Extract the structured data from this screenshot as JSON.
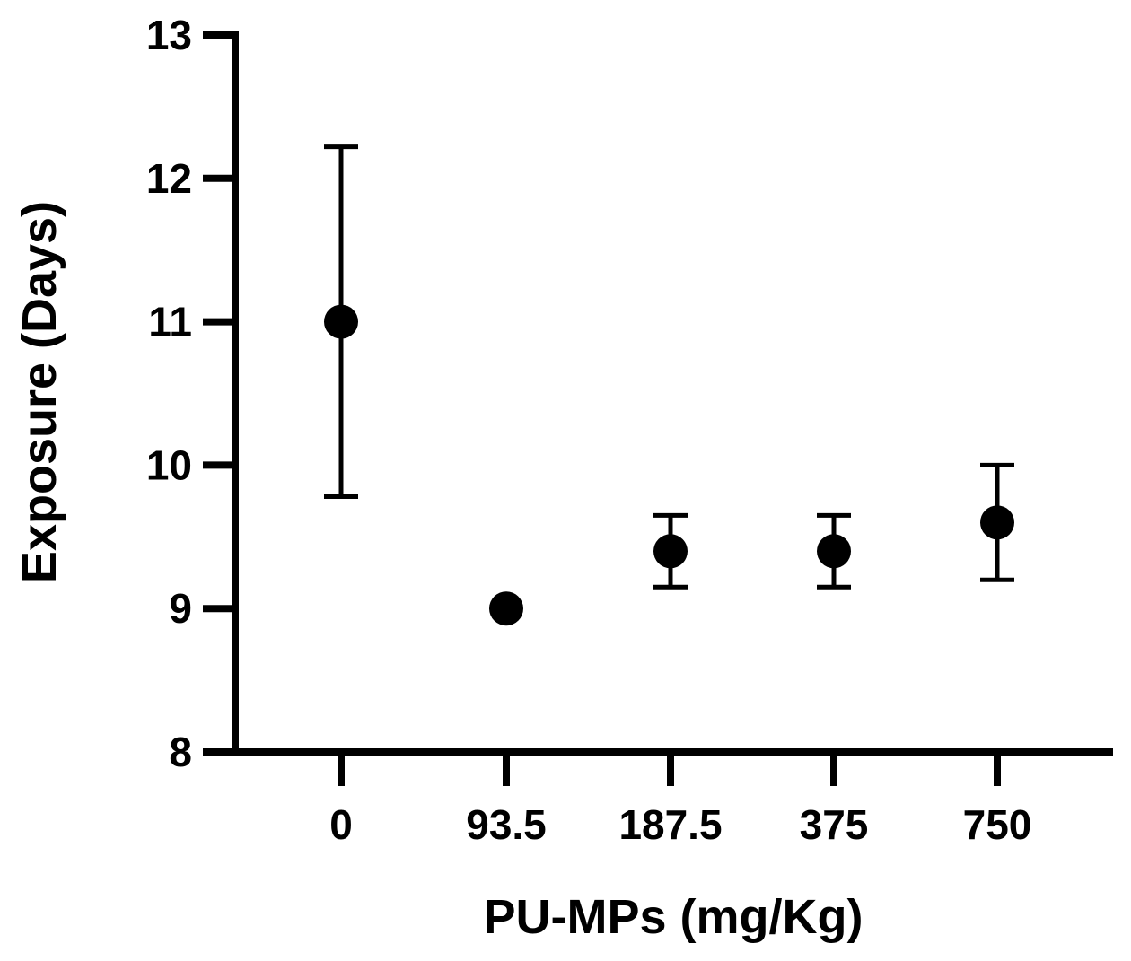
{
  "chart_data": {
    "type": "scatter",
    "categories": [
      "0",
      "93.5",
      "187.5",
      "375",
      "750"
    ],
    "values": [
      11.0,
      9.0,
      9.4,
      9.4,
      9.6
    ],
    "error_low": [
      9.78,
      9.0,
      9.15,
      9.15,
      9.2
    ],
    "error_high": [
      12.22,
      9.0,
      9.65,
      9.65,
      10.0
    ],
    "xlabel": "PU-MPs (mg/Kg)",
    "ylabel": "Exposure (Days)",
    "ylim": [
      8,
      13
    ],
    "yticks": [
      8,
      9,
      10,
      11,
      12,
      13
    ],
    "grid": false,
    "legend": "none",
    "marker_color": "#000000"
  }
}
